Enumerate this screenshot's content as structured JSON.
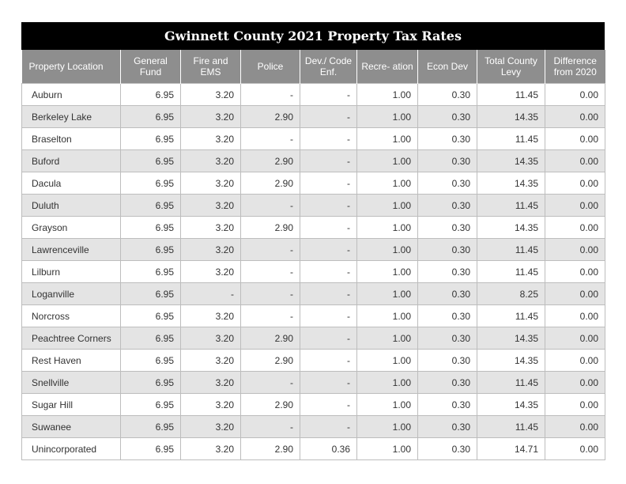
{
  "title": "Gwinnett County 2021 Property Tax Rates",
  "columns": [
    "Property Location",
    "General Fund",
    "Fire and EMS",
    "Police",
    "Dev./ Code Enf.",
    "Recre- ation",
    "Econ Dev",
    "Total County Levy",
    "Difference from 2020"
  ],
  "rows": [
    [
      "Auburn",
      "6.95",
      "3.20",
      "-",
      "-",
      "1.00",
      "0.30",
      "11.45",
      "0.00"
    ],
    [
      "Berkeley Lake",
      "6.95",
      "3.20",
      "2.90",
      "-",
      "1.00",
      "0.30",
      "14.35",
      "0.00"
    ],
    [
      "Braselton",
      "6.95",
      "3.20",
      "-",
      "-",
      "1.00",
      "0.30",
      "11.45",
      "0.00"
    ],
    [
      "Buford",
      "6.95",
      "3.20",
      "2.90",
      "-",
      "1.00",
      "0.30",
      "14.35",
      "0.00"
    ],
    [
      "Dacula",
      "6.95",
      "3.20",
      "2.90",
      "-",
      "1.00",
      "0.30",
      "14.35",
      "0.00"
    ],
    [
      "Duluth",
      "6.95",
      "3.20",
      "-",
      "-",
      "1.00",
      "0.30",
      "11.45",
      "0.00"
    ],
    [
      "Grayson",
      "6.95",
      "3.20",
      "2.90",
      "-",
      "1.00",
      "0.30",
      "14.35",
      "0.00"
    ],
    [
      "Lawrenceville",
      "6.95",
      "3.20",
      "-",
      "-",
      "1.00",
      "0.30",
      "11.45",
      "0.00"
    ],
    [
      "Lilburn",
      "6.95",
      "3.20",
      "-",
      "-",
      "1.00",
      "0.30",
      "11.45",
      "0.00"
    ],
    [
      "Loganville",
      "6.95",
      "-",
      "-",
      "-",
      "1.00",
      "0.30",
      "8.25",
      "0.00"
    ],
    [
      "Norcross",
      "6.95",
      "3.20",
      "-",
      "-",
      "1.00",
      "0.30",
      "11.45",
      "0.00"
    ],
    [
      "Peachtree Corners",
      "6.95",
      "3.20",
      "2.90",
      "-",
      "1.00",
      "0.30",
      "14.35",
      "0.00"
    ],
    [
      "Rest Haven",
      "6.95",
      "3.20",
      "2.90",
      "-",
      "1.00",
      "0.30",
      "14.35",
      "0.00"
    ],
    [
      "Snellville",
      "6.95",
      "3.20",
      "-",
      "-",
      "1.00",
      "0.30",
      "11.45",
      "0.00"
    ],
    [
      "Sugar Hill",
      "6.95",
      "3.20",
      "2.90",
      "-",
      "1.00",
      "0.30",
      "14.35",
      "0.00"
    ],
    [
      "Suwanee",
      "6.95",
      "3.20",
      "-",
      "-",
      "1.00",
      "0.30",
      "11.45",
      "0.00"
    ],
    [
      "Unincorporated",
      "6.95",
      "3.20",
      "2.90",
      "0.36",
      "1.00",
      "0.30",
      "14.71",
      "0.00"
    ]
  ],
  "colors": {
    "title_bg": "#000000",
    "header_bg": "#8e8e8e",
    "alt_row_bg": "#e4e4e4",
    "border": "#bdbdbd"
  }
}
